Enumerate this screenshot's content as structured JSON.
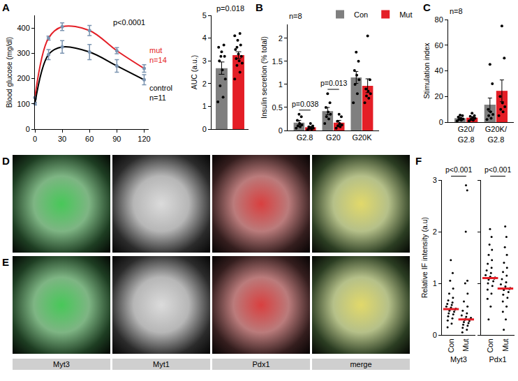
{
  "chart_data": [
    {
      "panel_label": "A",
      "type": "line",
      "x": [
        0,
        15,
        30,
        60,
        90,
        120
      ],
      "xlim": [
        0,
        125
      ],
      "xticks": [
        0,
        30,
        60,
        90,
        120
      ],
      "ylim": [
        0,
        450
      ],
      "yticks": [
        0,
        100,
        200,
        300,
        400
      ],
      "y_label": "Blood glucose (mg/dl)",
      "marker": "circle",
      "annotations": [
        "p<0.0001"
      ],
      "series": [
        {
          "name": "mut",
          "n": "n=14",
          "color": "#e41e26",
          "values": [
            125,
            360,
            405,
            390,
            310,
            240
          ],
          "errors": [
            6,
            8,
            15,
            20,
            12,
            15
          ]
        },
        {
          "name": "control",
          "n": "n=11",
          "color": "#000000",
          "values": [
            100,
            295,
            325,
            305,
            250,
            195
          ],
          "errors": [
            5,
            20,
            25,
            30,
            25,
            20
          ]
        }
      ]
    },
    {
      "type": "bar",
      "categories": [
        null,
        null
      ],
      "values": [
        2.68,
        3.25
      ],
      "errors": [
        0.27,
        0.15
      ],
      "colors": [
        "#7f7f7f",
        "#e41e26"
      ],
      "points": [
        [
          1.2,
          1.4,
          1.9,
          2.2,
          2.6,
          3.0,
          3.2,
          3.4,
          3.6,
          3.7,
          3.2
        ],
        [
          2.2,
          2.5,
          2.8,
          2.9,
          3.0,
          3.1,
          3.2,
          3.3,
          3.5,
          3.7,
          3.9,
          4.1,
          4.2,
          3.6
        ]
      ],
      "ylim": [
        0,
        5
      ],
      "yticks": [
        0,
        1,
        2,
        3,
        4,
        5
      ],
      "y_label": "AUC (a.u.)",
      "annotations": [
        "p=0.018"
      ],
      "tick_labels": "y"
    },
    {
      "panel_label": "B",
      "type": "bar",
      "categories": [
        "G2.8",
        "G20",
        "G20K"
      ],
      "ylim": [
        0,
        2.3
      ],
      "yticks": [
        0,
        0.5,
        1,
        1.5,
        2
      ],
      "y_label": "Insulin secretion (% total)",
      "annotations": [
        "n=8"
      ],
      "legend": "top",
      "comparisons": [
        {
          "category": "G2.8",
          "label": "p=0.038"
        },
        {
          "category": "G20",
          "label": "p=0.013"
        }
      ],
      "series": [
        {
          "name": "Con",
          "color": "#7f7f7f",
          "values": [
            0.17,
            0.42,
            1.15
          ],
          "errors": [
            0.05,
            0.08,
            0.13
          ],
          "points": [
            [
              0.05,
              0.08,
              0.1,
              0.12,
              0.15,
              0.22,
              0.3,
              0.35
            ],
            [
              0.15,
              0.25,
              0.3,
              0.35,
              0.4,
              0.5,
              0.6,
              0.8
            ],
            [
              0.6,
              0.8,
              1.0,
              1.1,
              1.2,
              1.3,
              1.5,
              1.7
            ]
          ]
        },
        {
          "name": "Mut",
          "color": "#e41e26",
          "values": [
            0.07,
            0.17,
            0.97
          ],
          "errors": [
            0.02,
            0.05,
            0.15
          ],
          "points": [
            [
              0.02,
              0.03,
              0.04,
              0.05,
              0.06,
              0.08,
              0.1,
              0.15
            ],
            [
              0.05,
              0.08,
              0.1,
              0.12,
              0.15,
              0.2,
              0.3,
              0.35
            ],
            [
              0.6,
              0.7,
              0.75,
              0.8,
              0.85,
              0.9,
              1.1,
              2.05
            ]
          ]
        }
      ]
    },
    {
      "panel_label": "C",
      "type": "bar",
      "categories": [
        "G20/G2.8",
        "G20K/G2.8"
      ],
      "ylim": [
        0,
        80
      ],
      "yticks": [
        0,
        20,
        40,
        60,
        80
      ],
      "y_label": "Stimulation index",
      "annotations": [
        "n=8"
      ],
      "series": [
        {
          "name": "Con",
          "color": "#7f7f7f",
          "values": [
            3.06,
            13.6
          ],
          "errors": [
            0.6,
            5.2
          ],
          "points": [
            [
              1,
              1.5,
              2,
              2.5,
              3,
              4,
              5,
              5.5
            ],
            [
              2,
              3,
              5,
              6,
              8,
              10,
              30,
              45
            ]
          ]
        },
        {
          "name": "Mut",
          "color": "#e41e26",
          "values": [
            3.44,
            24.4
          ],
          "errors": [
            0.7,
            8.5
          ],
          "points": [
            [
              1,
              1.5,
              2,
              3,
              3.5,
              4.5,
              5,
              7
            ],
            [
              5,
              8,
              10,
              12,
              15,
              20,
              50,
              75
            ]
          ]
        }
      ]
    },
    {
      "panel_label": "F",
      "type": "scatter",
      "x_label": "Myt3",
      "categories": [
        "Con",
        "Mut"
      ],
      "color": "#000000",
      "ylim": [
        0,
        3
      ],
      "yticks": [
        0,
        1,
        2,
        3
      ],
      "y_label": "Relative IF intensity (a.u)",
      "annotations": [
        "p<0.001"
      ],
      "medians": [
        0.5,
        0.3
      ],
      "points": [
        [
          0.15,
          0.22,
          0.28,
          0.32,
          0.36,
          0.4,
          0.42,
          0.45,
          0.47,
          0.49,
          0.5,
          0.51,
          0.53,
          0.55,
          0.58,
          0.6,
          0.63,
          0.67,
          0.72,
          0.8,
          0.9,
          1.05,
          1.2,
          1.45
        ],
        [
          0.05,
          0.1,
          0.14,
          0.18,
          0.2,
          0.23,
          0.25,
          0.27,
          0.29,
          0.3,
          0.31,
          0.33,
          0.35,
          0.38,
          0.42,
          0.47,
          0.55,
          0.65,
          0.8,
          1.0,
          1.05,
          2.0,
          2.8,
          2.9
        ]
      ]
    },
    {
      "type": "scatter",
      "x_label": "Pdx1",
      "categories": [
        "Con",
        "Mut"
      ],
      "color": "#000000",
      "ylim": [
        0,
        3
      ],
      "yticks": [
        0,
        1,
        2,
        3
      ],
      "annotations": [
        "p<0.001"
      ],
      "tick_labels": "x",
      "medians": [
        1.1,
        0.9
      ],
      "points": [
        [
          0.3,
          0.55,
          0.7,
          0.8,
          0.88,
          0.95,
          1.0,
          1.04,
          1.07,
          1.09,
          1.1,
          1.11,
          1.13,
          1.16,
          1.2,
          1.25,
          1.3,
          1.38,
          1.45,
          1.55,
          1.65,
          1.75,
          1.9,
          2.05
        ],
        [
          0.1,
          0.3,
          0.45,
          0.55,
          0.65,
          0.72,
          0.78,
          0.83,
          0.87,
          0.89,
          0.9,
          0.91,
          0.94,
          0.98,
          1.02,
          1.08,
          1.15,
          1.22,
          1.3,
          1.4,
          1.55,
          1.7,
          1.9,
          2.1
        ]
      ]
    }
  ],
  "image_panels": {
    "rows": [
      "D",
      "E"
    ],
    "columns": [
      "Myt3",
      "Myt1",
      "Pdx1",
      "merge"
    ]
  }
}
